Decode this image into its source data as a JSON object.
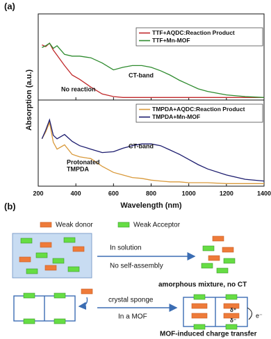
{
  "panels": {
    "a": "(a)",
    "b": "(b)"
  },
  "chart_data": [
    {
      "type": "line",
      "ylabel": "Absorption (a.u.)",
      "x": [
        220,
        240,
        260,
        280,
        300,
        340,
        380,
        420,
        480,
        540,
        600,
        650,
        700,
        750,
        800,
        850,
        900,
        950,
        1000,
        1050,
        1100,
        1200,
        1300,
        1400
      ],
      "xlim": [
        200,
        1400
      ],
      "xticks": [
        200,
        400,
        600,
        800,
        1000,
        1200,
        1400
      ],
      "ylim": [
        0,
        1
      ],
      "legend": "upper right",
      "series": [
        {
          "name": "TTF+AQDC:Reaction Product",
          "color": "#c0282a",
          "values": [
            0.64,
            0.62,
            0.66,
            0.58,
            0.52,
            0.4,
            0.29,
            0.24,
            0.15,
            0.07,
            0.04,
            0.03,
            0.03,
            0.03,
            0.03,
            0.03,
            0.03,
            0.03,
            0.03,
            0.03,
            0.03,
            0.03,
            0.03,
            0.03
          ]
        },
        {
          "name": "TTF+Mn-MOF",
          "color": "#2e8b2e",
          "values": [
            0.61,
            0.63,
            0.66,
            0.6,
            0.63,
            0.53,
            0.51,
            0.51,
            0.49,
            0.43,
            0.35,
            0.38,
            0.4,
            0.4,
            0.38,
            0.34,
            0.29,
            0.23,
            0.18,
            0.13,
            0.1,
            0.06,
            0.04,
            0.03
          ]
        }
      ],
      "annotations": [
        "CT-band",
        "No reaction"
      ]
    },
    {
      "type": "line",
      "xlabel": "Wavelength (nm)",
      "x": [
        220,
        240,
        260,
        280,
        300,
        340,
        380,
        420,
        480,
        540,
        600,
        650,
        700,
        750,
        800,
        850,
        900,
        950,
        1000,
        1050,
        1100,
        1200,
        1300,
        1400
      ],
      "xlim": [
        200,
        1400
      ],
      "xticks": [
        200,
        400,
        600,
        800,
        1000,
        1200,
        1400
      ],
      "ylim": [
        0,
        1
      ],
      "legend": "upper right",
      "series": [
        {
          "name": "TMPDA+AQDC:Reaction Product",
          "color": "#d9993a",
          "values": [
            0.55,
            0.63,
            0.74,
            0.51,
            0.43,
            0.48,
            0.37,
            0.34,
            0.32,
            0.23,
            0.16,
            0.13,
            0.1,
            0.09,
            0.07,
            0.06,
            0.05,
            0.05,
            0.04,
            0.04,
            0.04,
            0.03,
            0.03,
            0.03
          ]
        },
        {
          "name": "TMPDA+Mn-MOF",
          "color": "#1c1c6e",
          "values": [
            0.55,
            0.65,
            0.77,
            0.59,
            0.55,
            0.6,
            0.52,
            0.47,
            0.43,
            0.39,
            0.4,
            0.44,
            0.47,
            0.49,
            0.49,
            0.47,
            0.42,
            0.37,
            0.31,
            0.25,
            0.2,
            0.13,
            0.08,
            0.06
          ]
        }
      ],
      "annotations": [
        "CT-band",
        "Protonated",
        "TMPDA"
      ]
    }
  ],
  "diagram": {
    "legend": [
      "Weak donor",
      "Weak Acceptor"
    ],
    "steps": [
      {
        "above": "In solution",
        "below": "No self-assembly",
        "result": "amorphous mixture, no CT"
      },
      {
        "above": "crystal sponge",
        "below": "In a MOF",
        "result": "MOF-induced charge transfer"
      }
    ],
    "charges": [
      "δ⁺",
      "δ⁻",
      "e⁻"
    ]
  }
}
